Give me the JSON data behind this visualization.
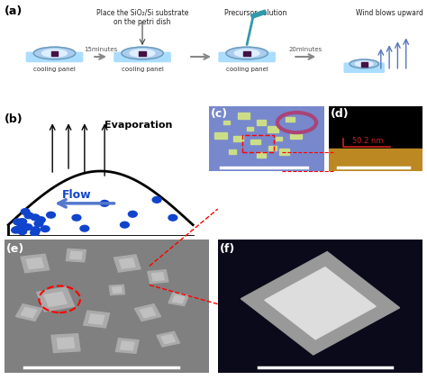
{
  "fig_width": 4.74,
  "fig_height": 4.22,
  "dpi": 100,
  "bg_color": "#ffffff",
  "panel_labels": [
    "(a)",
    "(b)",
    "(c)",
    "(d)",
    "(e)",
    "(f)"
  ],
  "panel_label_fontsize": 9,
  "panel_label_bold": true,
  "panel_a": {
    "title_text": "Place the SiO₂/Si substrate\non the petri dish",
    "step1_label": "cooling panel",
    "step2_label": "cooling panel",
    "step2_time": "15minutes",
    "step3_label": "cooling panel",
    "step3_top": "Precursor solution",
    "step4_label": "Wind blows upward",
    "step4_time": "20minutes",
    "dish_color": "#aaccee",
    "arrow_color": "#888888",
    "panel_color": "#aaccee"
  },
  "panel_b": {
    "evaporation_text": "Evaporation",
    "flow_text": "Flow",
    "curve_color": "#000000",
    "dot_color": "#1155cc",
    "arrow_color": "#000000",
    "flow_arrow_color": "#6688cc"
  },
  "panel_c": {
    "bg_color": "#7777cc",
    "crystal_color": "#ccdd88",
    "scale_bar_color": "#ffffff"
  },
  "panel_d": {
    "bg_color_top": "#000000",
    "bg_color_bottom": "#cc9933",
    "annotation": "50.2 nm",
    "annotation_color": "#cc2222",
    "scale_bar_color": "#ffffff"
  },
  "panel_e": {
    "bg_color": "#888888",
    "crystal_color": "#aaaaaa",
    "scale_bar_color": "#ffffff",
    "dashed_circle_color": "#cc0000",
    "dashed_line_color": "#cc0000"
  },
  "panel_f": {
    "bg_color": "#111122",
    "crystal_color": "#cccccc",
    "scale_bar_color": "#ffffff"
  }
}
